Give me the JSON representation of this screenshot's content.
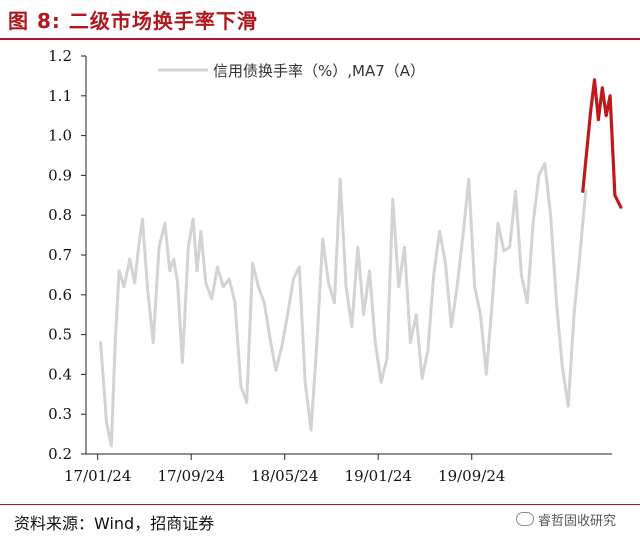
{
  "title": "图  8:  二级市场换手率下滑",
  "source": "资料来源：Wind，招商证券",
  "watermark": "睿哲固收研究",
  "colors": {
    "accent": "#b0181f",
    "gray_series": "#d3d3d3",
    "red_series": "#c0191c"
  },
  "chart_data": {
    "type": "line",
    "title": "",
    "legend": {
      "entries": [
        "信用债换手率（%）,MA7（A）"
      ],
      "placement": "top-center"
    },
    "xlabel": "",
    "ylabel": "",
    "ylim": [
      0.2,
      1.2
    ],
    "yticks": [
      "0.2",
      "0.3",
      "0.4",
      "0.5",
      "0.6",
      "0.7",
      "0.8",
      "0.9",
      "1.0",
      "1.1",
      "1.2"
    ],
    "xticks": [
      "17/01/24",
      "17/09/24",
      "18/05/24",
      "19/01/24",
      "19/09/24"
    ],
    "xlim_months": [
      "2016-12",
      "2020-09"
    ],
    "grid": false,
    "series": [
      {
        "name": "信用债换手率（%）,MA7（A）",
        "color": "#d3d3d3",
        "points": [
          [
            "2017-01",
            0.48
          ],
          [
            "2017-01",
            0.28
          ],
          [
            "2017-02",
            0.22
          ],
          [
            "2017-02",
            0.48
          ],
          [
            "2017-02",
            0.66
          ],
          [
            "2017-03",
            0.62
          ],
          [
            "2017-03",
            0.69
          ],
          [
            "2017-04",
            0.63
          ],
          [
            "2017-04",
            0.72
          ],
          [
            "2017-04",
            0.79
          ],
          [
            "2017-05",
            0.62
          ],
          [
            "2017-05",
            0.48
          ],
          [
            "2017-06",
            0.72
          ],
          [
            "2017-06",
            0.78
          ],
          [
            "2017-07",
            0.66
          ],
          [
            "2017-07",
            0.69
          ],
          [
            "2017-07",
            0.63
          ],
          [
            "2017-08",
            0.43
          ],
          [
            "2017-08",
            0.72
          ],
          [
            "2017-09",
            0.79
          ],
          [
            "2017-09",
            0.66
          ],
          [
            "2017-09",
            0.76
          ],
          [
            "2017-10",
            0.63
          ],
          [
            "2017-10",
            0.59
          ],
          [
            "2017-11",
            0.67
          ],
          [
            "2017-11",
            0.62
          ],
          [
            "2017-12",
            0.64
          ],
          [
            "2017-12",
            0.58
          ],
          [
            "2018-01",
            0.37
          ],
          [
            "2018-01",
            0.33
          ],
          [
            "2018-02",
            0.68
          ],
          [
            "2018-02",
            0.62
          ],
          [
            "2018-03",
            0.58
          ],
          [
            "2018-03",
            0.49
          ],
          [
            "2018-04",
            0.41
          ],
          [
            "2018-04",
            0.47
          ],
          [
            "2018-05",
            0.55
          ],
          [
            "2018-05",
            0.64
          ],
          [
            "2018-06",
            0.67
          ],
          [
            "2018-06",
            0.38
          ],
          [
            "2018-07",
            0.26
          ],
          [
            "2018-07",
            0.48
          ],
          [
            "2018-08",
            0.74
          ],
          [
            "2018-08",
            0.63
          ],
          [
            "2018-09",
            0.58
          ],
          [
            "2018-09",
            0.89
          ],
          [
            "2018-10",
            0.62
          ],
          [
            "2018-10",
            0.52
          ],
          [
            "2018-11",
            0.72
          ],
          [
            "2018-11",
            0.55
          ],
          [
            "2018-12",
            0.66
          ],
          [
            "2018-12",
            0.48
          ],
          [
            "2019-01",
            0.38
          ],
          [
            "2019-01",
            0.44
          ],
          [
            "2019-02",
            0.84
          ],
          [
            "2019-02",
            0.62
          ],
          [
            "2019-03",
            0.72
          ],
          [
            "2019-03",
            0.48
          ],
          [
            "2019-04",
            0.55
          ],
          [
            "2019-04",
            0.39
          ],
          [
            "2019-05",
            0.46
          ],
          [
            "2019-05",
            0.65
          ],
          [
            "2019-06",
            0.76
          ],
          [
            "2019-06",
            0.68
          ],
          [
            "2019-07",
            0.52
          ],
          [
            "2019-07",
            0.62
          ],
          [
            "2019-08",
            0.75
          ],
          [
            "2019-08",
            0.89
          ],
          [
            "2019-09",
            0.62
          ],
          [
            "2019-09",
            0.55
          ],
          [
            "2019-10",
            0.4
          ],
          [
            "2019-10",
            0.58
          ],
          [
            "2019-11",
            0.78
          ],
          [
            "2019-11",
            0.71
          ],
          [
            "2019-12",
            0.72
          ],
          [
            "2019-12",
            0.86
          ],
          [
            "2020-01",
            0.65
          ],
          [
            "2020-01",
            0.58
          ],
          [
            "2020-02",
            0.78
          ],
          [
            "2020-02",
            0.9
          ],
          [
            "2020-03",
            0.93
          ],
          [
            "2020-03",
            0.8
          ],
          [
            "2020-04",
            0.58
          ],
          [
            "2020-04",
            0.42
          ],
          [
            "2020-05",
            0.32
          ],
          [
            "2020-05",
            0.55
          ],
          [
            "2020-06",
            0.7
          ],
          [
            "2020-06",
            0.86
          ]
        ]
      },
      {
        "name": "",
        "color": "#c0191c",
        "points": [
          [
            "2020-06",
            0.86
          ],
          [
            "2020-07",
            1.06
          ],
          [
            "2020-07",
            1.14
          ],
          [
            "2020-07",
            1.04
          ],
          [
            "2020-08",
            1.12
          ],
          [
            "2020-08",
            1.05
          ],
          [
            "2020-08",
            1.1
          ],
          [
            "2020-09",
            0.85
          ],
          [
            "2020-09",
            0.82
          ]
        ]
      }
    ]
  }
}
